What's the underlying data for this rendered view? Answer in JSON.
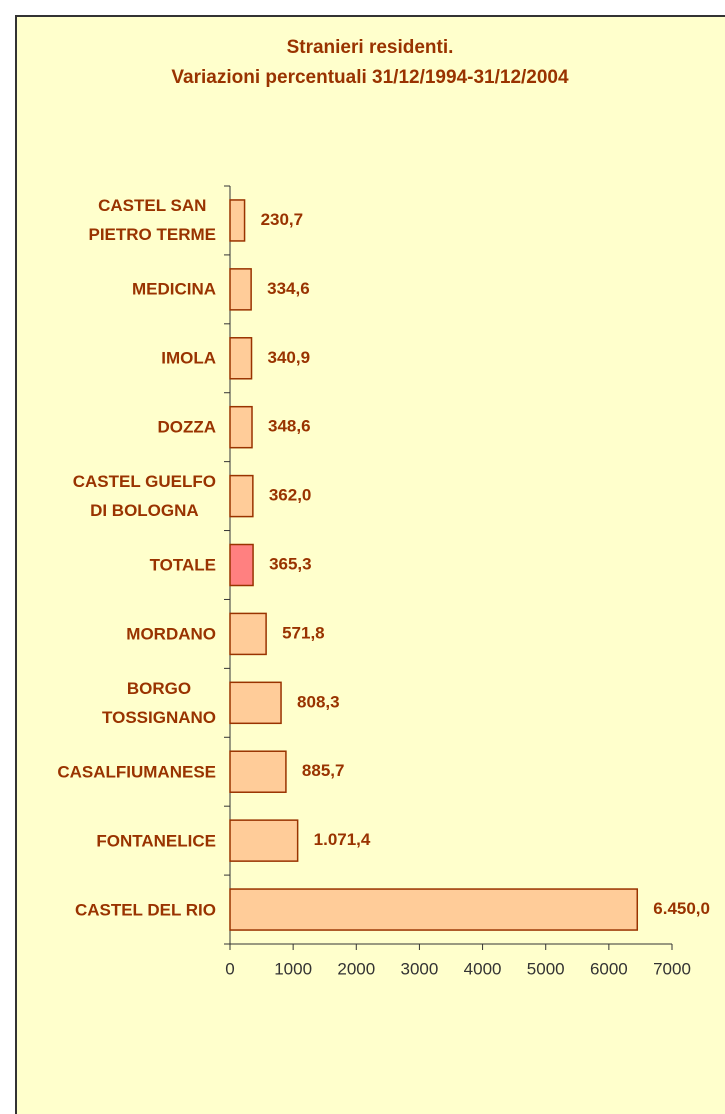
{
  "chart_data": {
    "type": "barh",
    "title": "Stranieri residenti.\nVariazioni percentuali 31/12/1994-31/12/2004",
    "categories": [
      "CASTEL SAN\nPIETRO TERME",
      "MEDICINA",
      "IMOLA",
      "DOZZA",
      "CASTEL GUELFO\nDI BOLOGNA",
      "TOTALE",
      "MORDANO",
      "BORGO\nTOSSIGNANO",
      "CASALFIUMANESE",
      "FONTANELICE",
      "CASTEL DEL RIO"
    ],
    "values": [
      230.7,
      334.6,
      340.9,
      348.6,
      362.0,
      365.3,
      571.8,
      808.3,
      885.7,
      1071.4,
      6450.0
    ],
    "value_labels": [
      "230,7",
      "334,6",
      "340,9",
      "348,6",
      "362,0",
      "365,3",
      "571,8",
      "808,3",
      "885,7",
      "1.071,4",
      "6.450,0"
    ],
    "colors": [
      "#ffcc99",
      "#ffcc99",
      "#ffcc99",
      "#ffcc99",
      "#ffcc99",
      "#ff8080",
      "#ffcc99",
      "#ffcc99",
      "#ffcc99",
      "#ffcc99",
      "#ffcc99"
    ],
    "xlim": [
      0,
      7000
    ],
    "xticks": [
      0,
      1000,
      2000,
      3000,
      4000,
      5000,
      6000,
      7000
    ],
    "grid": false
  }
}
